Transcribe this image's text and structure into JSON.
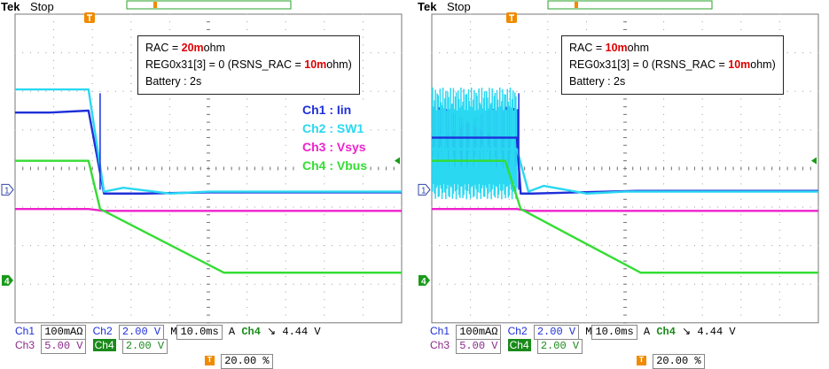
{
  "colors": {
    "ch1": "#1e2fd9",
    "ch2": "#2ad8f2",
    "ch3": "#ee22cc",
    "ch4": "#33dd33",
    "red": "#e00000",
    "trigger": "#f08a00"
  },
  "scopes": [
    {
      "brand": "Tek",
      "state": "Stop",
      "info": {
        "line1_prefix": "RAC = ",
        "line1_value": "20m",
        "line1_suffix": "ohm",
        "line2_prefix": "REG0x31[3] = 0 (RSNS_RAC = ",
        "line2_value": "10m",
        "line2_suffix": "ohm)",
        "line3": "Battery : 2s"
      },
      "legend": [
        "Ch1 : Iin",
        "Ch2 : SW1",
        "Ch3 : Vsys",
        "Ch4 : Vbus"
      ],
      "status": {
        "ch1_label": "Ch1",
        "ch1_scale": "100mAΩ",
        "ch2_label": "Ch2",
        "ch2_scale": "2.00 V",
        "timebase_label": "M",
        "timebase": "10.0ms",
        "trigger_mode": "A",
        "trigger_src": "Ch4",
        "trigger_slope": "↘",
        "trigger_level": "4.44 V",
        "ch3_label": "Ch3",
        "ch3_scale": "5.00 V",
        "ch4_label": "Ch4",
        "ch4_scale": "2.00 V",
        "trig_pos_icon": "T",
        "trig_pos": "20.00 %"
      },
      "ground_markers": {
        "ch1": "1",
        "ch4": "4"
      },
      "chart_data": {
        "type": "line",
        "xlabel": "",
        "ylabel": "",
        "grid": true,
        "series": [
          {
            "name": "Ch1 : Iin",
            "trace": "ch1",
            "x": [
              0,
              0.9,
              1.9,
              2.3,
              3.3,
              5,
              10
            ],
            "y": [
              1.45,
              1.45,
              1.5,
              -0.65,
              -0.65,
              -0.62,
              -0.62
            ]
          },
          {
            "name": "Ch2 : SW1",
            "trace": "ch2",
            "x": [
              0,
              1.9,
              2.3,
              2.8,
              4,
              5,
              10
            ],
            "y": [
              2.05,
              2.05,
              -0.6,
              -0.5,
              -0.65,
              -0.6,
              -0.6
            ]
          },
          {
            "name": "Ch3 : Vsys",
            "trace": "ch3",
            "x": [
              0,
              1.9,
              2.3,
              10
            ],
            "y": [
              -1.05,
              -1.05,
              -1.1,
              -1.1
            ]
          },
          {
            "name": "Ch4 : Vbus",
            "trace": "ch4",
            "x": [
              0,
              1.9,
              2.2,
              5.4,
              10
            ],
            "y": [
              0.2,
              0.2,
              -1.05,
              -2.7,
              -2.7
            ]
          }
        ]
      }
    },
    {
      "brand": "Tek",
      "state": "Stop",
      "info": {
        "line1_prefix": "RAC = ",
        "line1_value": "10m",
        "line1_suffix": "ohm",
        "line2_prefix": "REG0x31[3] = 0 (RSNS_RAC = ",
        "line2_value": "10m",
        "line2_suffix": "ohm)",
        "line3": "Battery : 2s"
      },
      "legend": [],
      "status": {
        "ch1_label": "Ch1",
        "ch1_scale": "100mAΩ",
        "ch2_label": "Ch2",
        "ch2_scale": "2.00 V",
        "timebase_label": "M",
        "timebase": "10.0ms",
        "trigger_mode": "A",
        "trigger_src": "Ch4",
        "trigger_slope": "↘",
        "trigger_level": "4.44 V",
        "ch3_label": "Ch3",
        "ch3_scale": "5.00 V",
        "ch4_label": "Ch4",
        "ch4_scale": "2.00 V",
        "trig_pos_icon": "T",
        "trig_pos": "20.00 %"
      },
      "ground_markers": {
        "ch1": "1",
        "ch4": "4"
      },
      "chart_data": {
        "type": "line",
        "xlabel": "",
        "ylabel": "",
        "grid": true,
        "series": [
          {
            "name": "Ch1 : Iin",
            "trace": "ch1",
            "x": [
              0,
              2.2,
              2.3,
              2.6,
              5.3,
              10
            ],
            "y": [
              0.8,
              0.8,
              -0.65,
              -0.65,
              -0.58,
              -0.58
            ]
          },
          {
            "name": "Ch2 : SW1",
            "trace": "ch2",
            "x": [
              0,
              2.2,
              2.5,
              2.9,
              4,
              5,
              10
            ],
            "y": [
              0.5,
              0.5,
              -0.6,
              -0.45,
              -0.65,
              -0.6,
              -0.6
            ]
          },
          {
            "name": "Ch3 : Vsys",
            "trace": "ch3",
            "x": [
              0,
              2.2,
              2.5,
              10
            ],
            "y": [
              -1.05,
              -1.05,
              -1.1,
              -1.1
            ]
          },
          {
            "name": "Ch4 : Vbus",
            "trace": "ch4",
            "x": [
              0,
              1.9,
              2.3,
              5.4,
              10
            ],
            "y": [
              0.2,
              0.2,
              -1.05,
              -2.7,
              -2.7
            ]
          }
        ]
      }
    }
  ]
}
